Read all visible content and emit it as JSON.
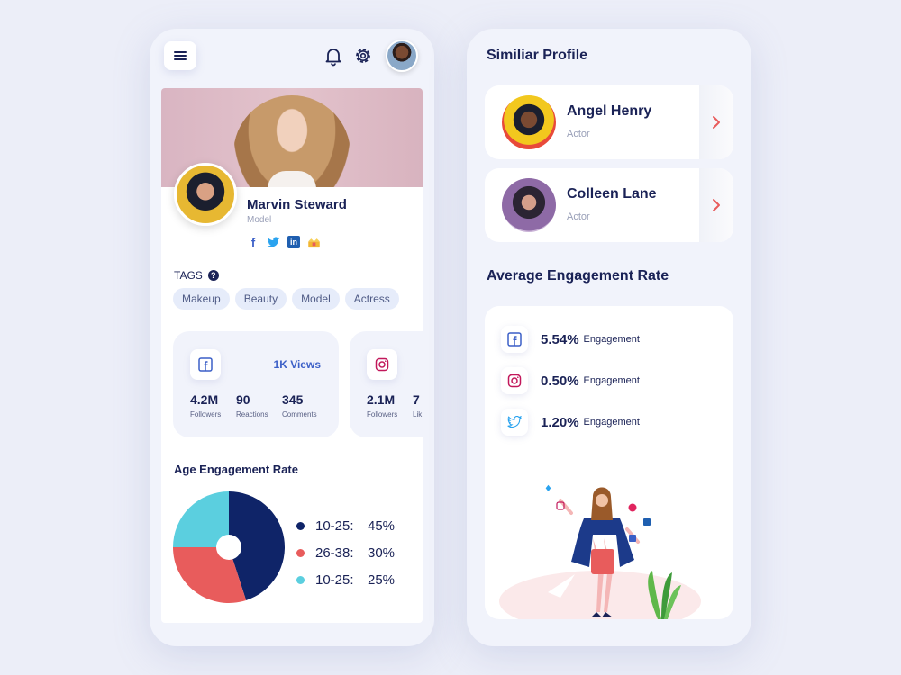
{
  "left_phone": {
    "profile": {
      "name": "Marvin Steward",
      "role": "Model",
      "socials": [
        "facebook-icon",
        "twitter-icon",
        "linkedin-icon",
        "crown-icon"
      ]
    },
    "tags": {
      "title": "TAGS",
      "items": [
        "Makeup",
        "Beauty",
        "Model",
        "Actress"
      ]
    },
    "stat_cards": [
      {
        "platform": "facebook",
        "views": "1K Views",
        "stats": [
          {
            "value": "4.2M",
            "label": "Followers"
          },
          {
            "value": "90",
            "label": "Reactions"
          },
          {
            "value": "345",
            "label": "Comments"
          }
        ]
      },
      {
        "platform": "instagram",
        "stats": [
          {
            "value": "2.1M",
            "label": "Followers"
          },
          {
            "value": "7",
            "label": "Lik"
          }
        ]
      }
    ],
    "age_engagement": {
      "title": "Age Engagement Rate",
      "legend": [
        {
          "range": "10-25:",
          "value": "45%",
          "color": "#0f2468"
        },
        {
          "range": "26-38:",
          "value": "30%",
          "color": "#e85c5c"
        },
        {
          "range": "10-25:",
          "value": "25%",
          "color": "#5bcfdf"
        }
      ]
    }
  },
  "right_phone": {
    "similar_title": "Similiar Profile",
    "similar_profiles": [
      {
        "name": "Angel Henry",
        "role": "Actor"
      },
      {
        "name": "Colleen Lane",
        "role": "Actor"
      }
    ],
    "avg_title": "Average Engagement Rate",
    "engagements": [
      {
        "platform": "facebook",
        "value": "5.54%",
        "label": "Engagement"
      },
      {
        "platform": "instagram",
        "value": "0.50%",
        "label": "Engagement"
      },
      {
        "platform": "twitter",
        "value": "1.20%",
        "label": "Engagement"
      }
    ]
  },
  "chart_data": {
    "type": "pie",
    "categories": [
      "10-25",
      "26-38",
      "10-25"
    ],
    "values": [
      45,
      30,
      25
    ],
    "colors": [
      "#0f2468",
      "#e85c5c",
      "#5bcfdf"
    ],
    "title": "Age Engagement Rate"
  }
}
